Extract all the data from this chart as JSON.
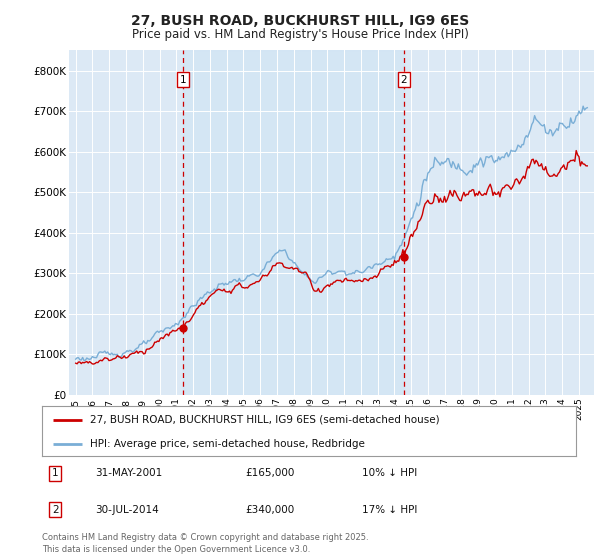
{
  "title_line1": "27, BUSH ROAD, BUCKHURST HILL, IG9 6ES",
  "title_line2": "Price paid vs. HM Land Registry's House Price Index (HPI)",
  "background_color": "#dce9f5",
  "fig_bg_color": "#ffffff",
  "legend_label_red": "27, BUSH ROAD, BUCKHURST HILL, IG9 6ES (semi-detached house)",
  "legend_label_blue": "HPI: Average price, semi-detached house, Redbridge",
  "annotation1_date": "31-MAY-2001",
  "annotation1_price": "£165,000",
  "annotation1_pct": "10% ↓ HPI",
  "annotation2_date": "30-JUL-2014",
  "annotation2_price": "£340,000",
  "annotation2_pct": "17% ↓ HPI",
  "footer": "Contains HM Land Registry data © Crown copyright and database right 2025.\nThis data is licensed under the Open Government Licence v3.0.",
  "ylim": [
    0,
    850000
  ],
  "yticks": [
    0,
    100000,
    200000,
    300000,
    400000,
    500000,
    600000,
    700000,
    800000
  ],
  "ytick_labels": [
    "£0",
    "£100K",
    "£200K",
    "£300K",
    "£400K",
    "£500K",
    "£600K",
    "£700K",
    "£800K"
  ],
  "red_color": "#cc0000",
  "blue_color": "#7aaed6",
  "vline_color": "#cc0000",
  "grid_color": "#c8d8e8",
  "highlight_color": "#d0e4f4",
  "sale1_x": 2001.41,
  "sale1_y": 165000,
  "sale2_x": 2014.57,
  "sale2_y": 340000,
  "xlim_left": 1994.6,
  "xlim_right": 2025.9
}
